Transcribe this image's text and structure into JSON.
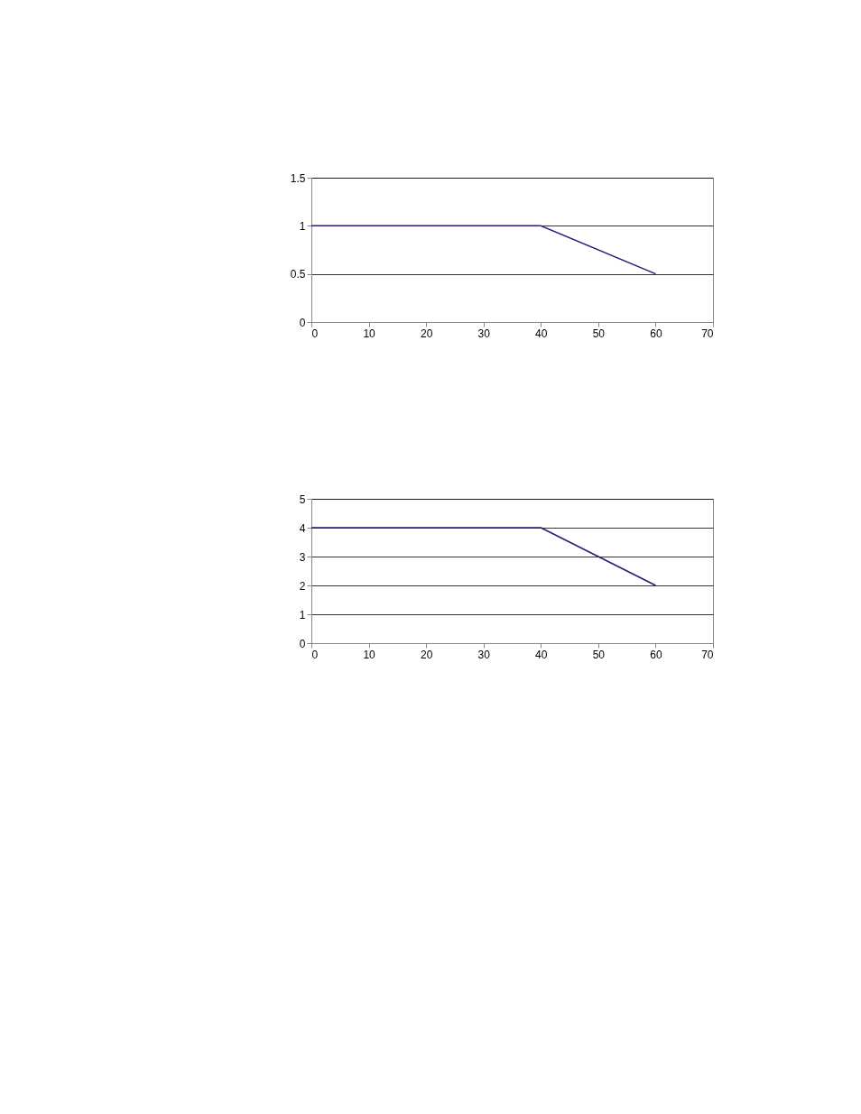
{
  "chart_data": [
    {
      "type": "line",
      "x": [
        0,
        10,
        20,
        30,
        40,
        60
      ],
      "series": [
        {
          "color": "#1f1f78",
          "values": [
            1,
            1,
            1,
            1,
            1,
            0.5
          ]
        }
      ],
      "xlim": [
        0,
        70
      ],
      "xticks": [
        0,
        10,
        20,
        30,
        40,
        50,
        60,
        70
      ],
      "ylim": [
        0,
        1.5
      ],
      "yticks": [
        0,
        0.5,
        1,
        1.5
      ],
      "grid": "y"
    },
    {
      "type": "line",
      "x": [
        0,
        10,
        20,
        30,
        40,
        60
      ],
      "series": [
        {
          "color": "#1f1f78",
          "values": [
            4,
            4,
            4,
            4,
            4,
            2
          ]
        }
      ],
      "xlim": [
        0,
        70
      ],
      "xticks": [
        0,
        10,
        20,
        30,
        40,
        50,
        60,
        70
      ],
      "ylim": [
        0,
        5
      ],
      "yticks": [
        0,
        1,
        2,
        3,
        4,
        5
      ],
      "grid": "y"
    }
  ]
}
